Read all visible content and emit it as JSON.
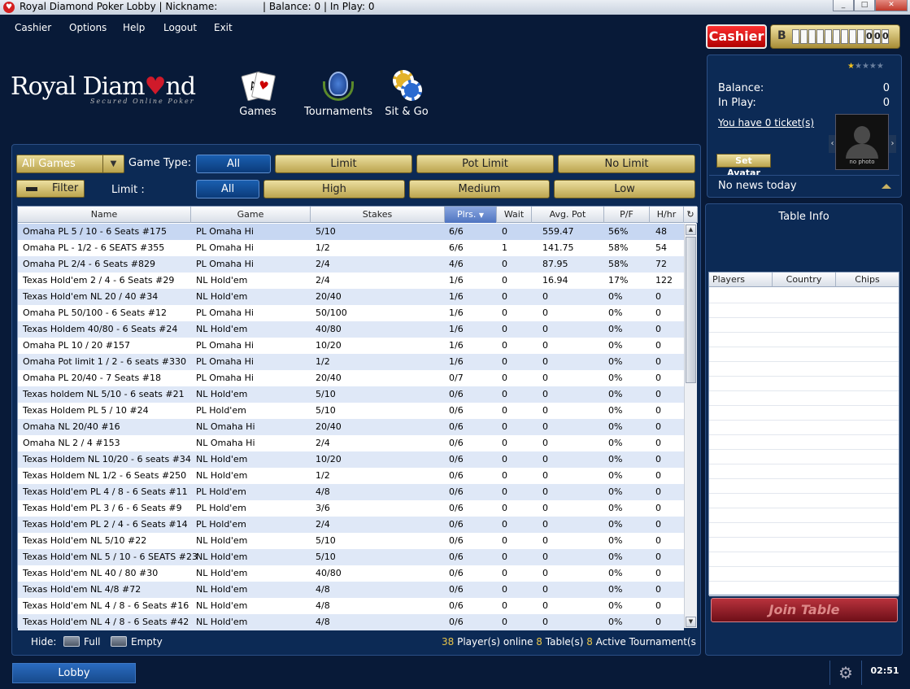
{
  "window": {
    "title_prefix": "Royal Diamond Poker Lobby | Nickname:",
    "title_suffix": "| Balance: 0 | In Play: 0"
  },
  "menu": [
    "Cashier",
    "Options",
    "Help",
    "Logout",
    "Exit"
  ],
  "logo": {
    "text_a": "Royal Di",
    "text_b": "am",
    "text_c": "nd",
    "tagline": "Secured Online Poker"
  },
  "nav": {
    "games": "Games",
    "tournaments": "Tournaments",
    "sitgo": "Sit & Go"
  },
  "filters": {
    "game_select": "All Games",
    "game_type_label": "Game Type:",
    "game_types": [
      "All",
      "Limit",
      "Pot Limit",
      "No Limit"
    ],
    "filter_label": "Filter",
    "limit_label": "Limit :",
    "limits": [
      "All",
      "High",
      "Medium",
      "Low"
    ]
  },
  "columns": [
    "Name",
    "Game",
    "Stakes",
    "Plrs.",
    "Wait",
    "Avg. Pot",
    "P/F",
    "H/hr"
  ],
  "rows": [
    [
      "Omaha PL 5 / 10 - 6 Seats #175",
      "PL Omaha Hi",
      "5/10",
      "6/6",
      "0",
      "559.47",
      "56%",
      "48"
    ],
    [
      "Omaha PL - 1/2 - 6 SEATS #355",
      "PL Omaha Hi",
      "1/2",
      "6/6",
      "1",
      "141.75",
      "58%",
      "54"
    ],
    [
      "Omaha PL 2/4 - 6 Seats #829",
      "PL Omaha Hi",
      "2/4",
      "4/6",
      "0",
      "87.95",
      "58%",
      "72"
    ],
    [
      "Texas Hold'em 2 / 4 - 6 Seats #29",
      "NL Hold'em",
      "2/4",
      "1/6",
      "0",
      "16.94",
      "17%",
      "122"
    ],
    [
      "Texas Hold'em NL 20 / 40 #34",
      "NL Hold'em",
      "20/40",
      "1/6",
      "0",
      "0",
      "0%",
      "0"
    ],
    [
      "Omaha PL 50/100 - 6 Seats #12",
      "PL Omaha Hi",
      "50/100",
      "1/6",
      "0",
      "0",
      "0%",
      "0"
    ],
    [
      "Texas Holdem 40/80 - 6 Seats #24",
      "NL Hold'em",
      "40/80",
      "1/6",
      "0",
      "0",
      "0%",
      "0"
    ],
    [
      "Omaha PL 10 / 20 #157",
      "PL Omaha Hi",
      "10/20",
      "1/6",
      "0",
      "0",
      "0%",
      "0"
    ],
    [
      "Omaha Pot limit 1 / 2 - 6 seats #330",
      "PL Omaha Hi",
      "1/2",
      "1/6",
      "0",
      "0",
      "0%",
      "0"
    ],
    [
      "Omaha PL 20/40 - 7 Seats #18",
      "PL Omaha Hi",
      "20/40",
      "0/7",
      "0",
      "0",
      "0%",
      "0"
    ],
    [
      "Texas holdem NL 5/10 - 6 seats #21",
      "NL Hold'em",
      "5/10",
      "0/6",
      "0",
      "0",
      "0%",
      "0"
    ],
    [
      "Texas Holdem PL 5 / 10 #24",
      "PL Hold'em",
      "5/10",
      "0/6",
      "0",
      "0",
      "0%",
      "0"
    ],
    [
      "Omaha NL 20/40 #16",
      "NL Omaha Hi",
      "20/40",
      "0/6",
      "0",
      "0",
      "0%",
      "0"
    ],
    [
      "Omaha NL 2 / 4 #153",
      "NL Omaha Hi",
      "2/4",
      "0/6",
      "0",
      "0",
      "0%",
      "0"
    ],
    [
      "Texas Holdem NL 10/20 - 6 seats #34",
      "NL Hold'em",
      "10/20",
      "0/6",
      "0",
      "0",
      "0%",
      "0"
    ],
    [
      "Texas Holdem NL 1/2 - 6 Seats #250",
      "NL Hold'em",
      "1/2",
      "0/6",
      "0",
      "0",
      "0%",
      "0"
    ],
    [
      "Texas Hold'em PL 4 / 8 - 6 Seats #11",
      "PL Hold'em",
      "4/8",
      "0/6",
      "0",
      "0",
      "0%",
      "0"
    ],
    [
      "Texas Hold'em PL 3 / 6 - 6 Seats #9",
      "PL Hold'em",
      "3/6",
      "0/6",
      "0",
      "0",
      "0%",
      "0"
    ],
    [
      "Texas Hold'em PL 2 / 4 - 6 Seats #14",
      "PL Hold'em",
      "2/4",
      "0/6",
      "0",
      "0",
      "0%",
      "0"
    ],
    [
      "Texas Hold'em NL 5/10 #22",
      "NL Hold'em",
      "5/10",
      "0/6",
      "0",
      "0",
      "0%",
      "0"
    ],
    [
      "Texas Hold'em NL 5 / 10 - 6 SEATS #23",
      "NL Hold'em",
      "5/10",
      "0/6",
      "0",
      "0",
      "0%",
      "0"
    ],
    [
      "Texas Hold'em NL 40 / 80 #30",
      "NL Hold'em",
      "40/80",
      "0/6",
      "0",
      "0",
      "0%",
      "0"
    ],
    [
      "Texas Hold'em NL 4/8 #72",
      "NL Hold'em",
      "4/8",
      "0/6",
      "0",
      "0",
      "0%",
      "0"
    ],
    [
      "Texas Hold'em NL 4 / 8 - 6 Seats #16",
      "NL Hold'em",
      "4/8",
      "0/6",
      "0",
      "0",
      "0%",
      "0"
    ],
    [
      "Texas Hold'em NL 4 / 8 - 6 Seats #42",
      "NL Hold'em",
      "4/8",
      "0/6",
      "0",
      "0",
      "0%",
      "0"
    ]
  ],
  "hide": {
    "label": "Hide:",
    "full": "Full",
    "empty": "Empty"
  },
  "status": {
    "players": "38",
    "players_text": " Player(s) online ",
    "tables": "8",
    "tables_text": " Table(s) ",
    "tournaments": "8",
    "tournaments_text": " Active Tournament(s"
  },
  "footer": {
    "lobby": "Lobby",
    "clock": "02:51"
  },
  "cashier": {
    "label": "Cashier",
    "bank_letter": "B",
    "digits": [
      "",
      "",
      "",
      "",
      "",
      "",
      "",
      "",
      "",
      "0",
      "0",
      "0"
    ]
  },
  "account": {
    "balance_label": "Balance:",
    "balance": "0",
    "inplay_label": "In Play:",
    "inplay": "0",
    "tickets": "You have 0 ticket(s)",
    "set_avatar": "Set Avatar",
    "no_photo": "no photo",
    "news": "No news today",
    "rating": 1,
    "rating_max": 5
  },
  "table_info": {
    "title": "Table Info",
    "columns": [
      "Players",
      "Country",
      "Chips"
    ],
    "join": "Join Table"
  },
  "colors": {
    "accent_gold": "#e8c44a",
    "panel": "#0c2a55",
    "background": "#081a38",
    "cashier_red": "#d00000"
  }
}
